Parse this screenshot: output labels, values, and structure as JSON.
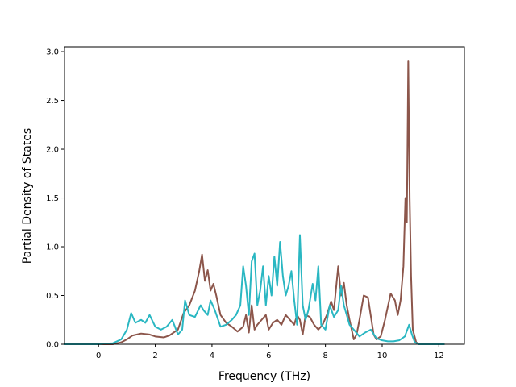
{
  "chart_data": {
    "type": "line",
    "title": "",
    "xlabel": "Frequency (THz)",
    "ylabel": "Partial Density of States",
    "xlim": [
      -1.2,
      12.9
    ],
    "ylim": [
      0,
      3.05
    ],
    "xticks": [
      0,
      2,
      4,
      6,
      8,
      10,
      12
    ],
    "yticks": [
      0.0,
      0.5,
      1.0,
      1.5,
      2.0,
      2.5,
      3.0
    ],
    "xtick_labels": [
      "0",
      "2",
      "4",
      "6",
      "8",
      "10",
      "12"
    ],
    "ytick_labels": [
      "0.0",
      "0.5",
      "1.0",
      "1.5",
      "2.0",
      "2.5",
      "3.0"
    ],
    "grid": false,
    "legend": "none",
    "series": [
      {
        "color": "#8c564b",
        "x": [
          -1.2,
          0.0,
          0.5,
          0.8,
          1.0,
          1.2,
          1.5,
          1.8,
          2.0,
          2.3,
          2.5,
          2.8,
          3.0,
          3.2,
          3.4,
          3.55,
          3.65,
          3.75,
          3.85,
          3.95,
          4.05,
          4.15,
          4.3,
          4.5,
          4.7,
          4.9,
          5.1,
          5.2,
          5.3,
          5.4,
          5.5,
          5.6,
          5.75,
          5.9,
          6.0,
          6.15,
          6.3,
          6.45,
          6.6,
          6.75,
          6.9,
          7.0,
          7.1,
          7.2,
          7.3,
          7.45,
          7.6,
          7.75,
          7.9,
          8.05,
          8.2,
          8.3,
          8.45,
          8.55,
          8.65,
          8.75,
          8.85,
          9.0,
          9.1,
          9.2,
          9.35,
          9.5,
          9.7,
          9.8,
          9.95,
          10.1,
          10.3,
          10.45,
          10.55,
          10.65,
          10.75,
          10.82,
          10.87,
          10.92,
          10.97,
          11.02,
          11.08,
          11.2,
          11.3,
          12.2
        ],
        "y": [
          0,
          0,
          0.0,
          0.02,
          0.05,
          0.09,
          0.11,
          0.1,
          0.08,
          0.07,
          0.09,
          0.15,
          0.32,
          0.4,
          0.55,
          0.75,
          0.92,
          0.65,
          0.76,
          0.55,
          0.62,
          0.5,
          0.3,
          0.22,
          0.18,
          0.13,
          0.18,
          0.3,
          0.12,
          0.4,
          0.15,
          0.2,
          0.25,
          0.3,
          0.15,
          0.22,
          0.25,
          0.2,
          0.3,
          0.25,
          0.2,
          0.3,
          0.25,
          0.1,
          0.3,
          0.28,
          0.2,
          0.15,
          0.2,
          0.3,
          0.44,
          0.35,
          0.8,
          0.5,
          0.63,
          0.4,
          0.25,
          0.05,
          0.1,
          0.25,
          0.5,
          0.48,
          0.1,
          0.05,
          0.08,
          0.25,
          0.52,
          0.45,
          0.3,
          0.45,
          0.8,
          1.5,
          1.25,
          2.9,
          1.5,
          0.7,
          0.15,
          0.02,
          0,
          0
        ]
      },
      {
        "color": "#2ab7c2",
        "x": [
          -1.2,
          0.0,
          0.5,
          0.8,
          1.0,
          1.15,
          1.3,
          1.5,
          1.65,
          1.8,
          2.0,
          2.2,
          2.4,
          2.6,
          2.8,
          2.95,
          3.05,
          3.2,
          3.4,
          3.6,
          3.7,
          3.85,
          3.95,
          4.1,
          4.3,
          4.5,
          4.7,
          4.85,
          5.0,
          5.1,
          5.2,
          5.3,
          5.4,
          5.5,
          5.6,
          5.7,
          5.8,
          5.9,
          6.0,
          6.1,
          6.2,
          6.3,
          6.4,
          6.5,
          6.6,
          6.7,
          6.8,
          6.9,
          7.0,
          7.1,
          7.2,
          7.3,
          7.4,
          7.55,
          7.65,
          7.75,
          7.85,
          8.0,
          8.15,
          8.3,
          8.45,
          8.55,
          8.65,
          8.75,
          8.85,
          9.0,
          9.2,
          9.4,
          9.6,
          9.8,
          10.0,
          10.2,
          10.4,
          10.6,
          10.8,
          10.95,
          11.05,
          11.15,
          11.3,
          12.2
        ],
        "y": [
          0,
          0,
          0.01,
          0.05,
          0.15,
          0.32,
          0.22,
          0.25,
          0.22,
          0.3,
          0.18,
          0.15,
          0.18,
          0.25,
          0.1,
          0.15,
          0.45,
          0.3,
          0.28,
          0.4,
          0.35,
          0.3,
          0.45,
          0.35,
          0.18,
          0.2,
          0.25,
          0.3,
          0.4,
          0.8,
          0.6,
          0.3,
          0.85,
          0.93,
          0.4,
          0.55,
          0.8,
          0.4,
          0.7,
          0.5,
          0.9,
          0.6,
          1.05,
          0.7,
          0.5,
          0.6,
          0.75,
          0.45,
          0.2,
          1.12,
          0.4,
          0.25,
          0.35,
          0.62,
          0.45,
          0.8,
          0.2,
          0.15,
          0.4,
          0.28,
          0.35,
          0.6,
          0.4,
          0.3,
          0.2,
          0.15,
          0.08,
          0.12,
          0.15,
          0.06,
          0.04,
          0.03,
          0.03,
          0.04,
          0.08,
          0.2,
          0.1,
          0.02,
          0,
          0
        ]
      }
    ]
  }
}
